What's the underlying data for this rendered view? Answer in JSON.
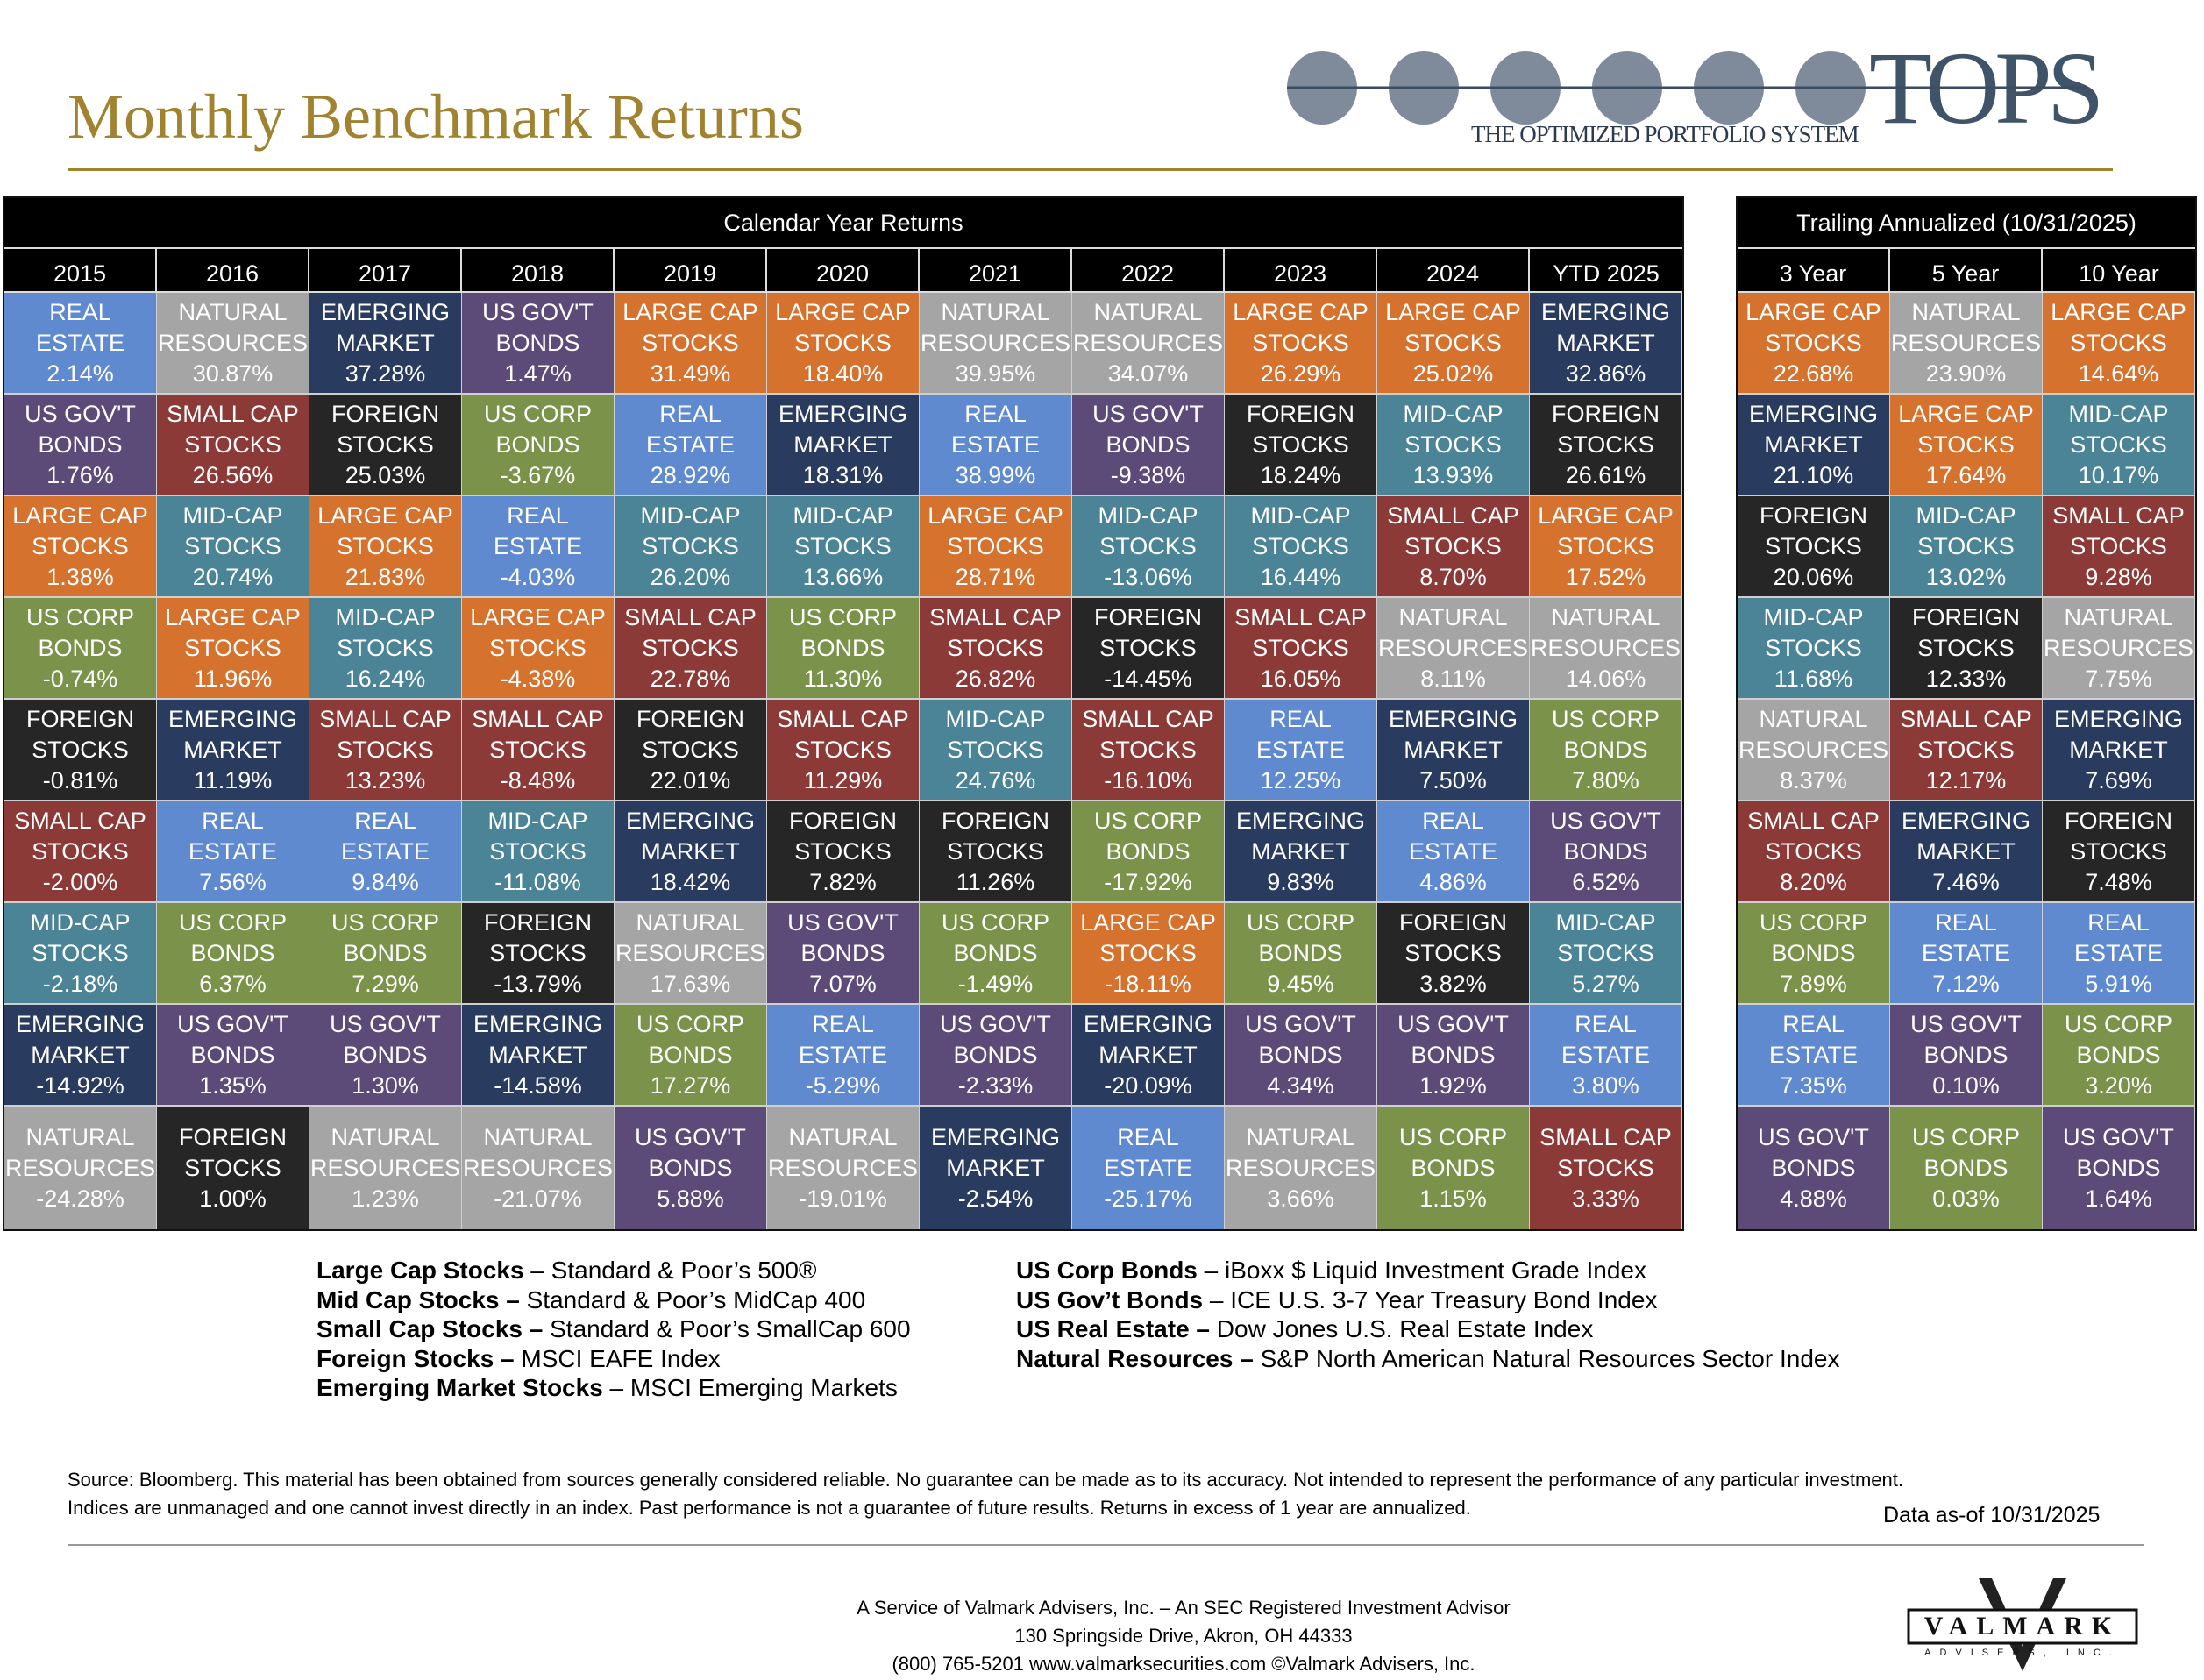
{
  "header": {
    "title": "Monthly Benchmark Returns",
    "logo_text": "TOPS",
    "logo_subtitle": "THE OPTIMIZED PORTFOLIO SYSTEM"
  },
  "colors": {
    "title_gold": "#a0822f"
  },
  "assets": {
    "RE": {
      "line1": "REAL",
      "line2": "ESTATE",
      "color": "#5f8ad0"
    },
    "NR": {
      "line1": "NATURAL",
      "line2": "RESOURCES",
      "color": "#a5a5a5"
    },
    "EM": {
      "line1": "EMERGING",
      "line2": "MARKET",
      "color": "#293b5f"
    },
    "GV": {
      "line1": "US GOV'T",
      "line2": "BONDS",
      "color": "#5c4a78"
    },
    "LC": {
      "line1": "LARGE CAP",
      "line2": "STOCKS",
      "color": "#d4722e"
    },
    "SC": {
      "line1": "SMALL CAP",
      "line2": "STOCKS",
      "color": "#8c3a38"
    },
    "FS": {
      "line1": "FOREIGN",
      "line2": "STOCKS",
      "color": "#262626"
    },
    "CB": {
      "line1": "US CORP",
      "line2": "BONDS",
      "color": "#7a9249"
    },
    "MC": {
      "line1": "MID-CAP",
      "line2": "STOCKS",
      "color": "#4a8496"
    }
  },
  "calendar": {
    "title": "Calendar Year Returns",
    "columns": [
      {
        "label": "2015",
        "cells": [
          [
            "RE",
            "2.14%"
          ],
          [
            "GV",
            "1.76%"
          ],
          [
            "LC",
            "1.38%"
          ],
          [
            "CB",
            "-0.74%"
          ],
          [
            "FS",
            "-0.81%"
          ],
          [
            "SC",
            "-2.00%"
          ],
          [
            "MC",
            "-2.18%"
          ],
          [
            "EM",
            "-14.92%"
          ],
          [
            "NR",
            "-24.28%"
          ]
        ]
      },
      {
        "label": "2016",
        "cells": [
          [
            "NR",
            "30.87%"
          ],
          [
            "SC",
            "26.56%"
          ],
          [
            "MC",
            "20.74%"
          ],
          [
            "LC",
            "11.96%"
          ],
          [
            "EM",
            "11.19%"
          ],
          [
            "RE",
            "7.56%"
          ],
          [
            "CB",
            "6.37%"
          ],
          [
            "GV",
            "1.35%"
          ],
          [
            "FS",
            "1.00%"
          ]
        ]
      },
      {
        "label": "2017",
        "cells": [
          [
            "EM",
            "37.28%"
          ],
          [
            "FS",
            "25.03%"
          ],
          [
            "LC",
            "21.83%"
          ],
          [
            "MC",
            "16.24%"
          ],
          [
            "SC",
            "13.23%"
          ],
          [
            "RE",
            "9.84%"
          ],
          [
            "CB",
            "7.29%"
          ],
          [
            "GV",
            "1.30%"
          ],
          [
            "NR",
            "1.23%"
          ]
        ]
      },
      {
        "label": "2018",
        "cells": [
          [
            "GV",
            "1.47%"
          ],
          [
            "CB",
            "-3.67%"
          ],
          [
            "RE",
            "-4.03%"
          ],
          [
            "LC",
            "-4.38%"
          ],
          [
            "SC",
            "-8.48%"
          ],
          [
            "MC",
            "-11.08%"
          ],
          [
            "FS",
            "-13.79%"
          ],
          [
            "EM",
            "-14.58%"
          ],
          [
            "NR",
            "-21.07%"
          ]
        ]
      },
      {
        "label": "2019",
        "cells": [
          [
            "LC",
            "31.49%"
          ],
          [
            "RE",
            "28.92%"
          ],
          [
            "MC",
            "26.20%"
          ],
          [
            "SC",
            "22.78%"
          ],
          [
            "FS",
            "22.01%"
          ],
          [
            "EM",
            "18.42%"
          ],
          [
            "NR",
            "17.63%"
          ],
          [
            "CB",
            "17.27%"
          ],
          [
            "GV",
            "5.88%"
          ]
        ]
      },
      {
        "label": "2020",
        "cells": [
          [
            "LC",
            "18.40%"
          ],
          [
            "EM",
            "18.31%"
          ],
          [
            "MC",
            "13.66%"
          ],
          [
            "CB",
            "11.30%"
          ],
          [
            "SC",
            "11.29%"
          ],
          [
            "FS",
            "7.82%"
          ],
          [
            "GV",
            "7.07%"
          ],
          [
            "RE",
            "-5.29%"
          ],
          [
            "NR",
            "-19.01%"
          ]
        ]
      },
      {
        "label": "2021",
        "cells": [
          [
            "NR",
            "39.95%"
          ],
          [
            "RE",
            "38.99%"
          ],
          [
            "LC",
            "28.71%"
          ],
          [
            "SC",
            "26.82%"
          ],
          [
            "MC",
            "24.76%"
          ],
          [
            "FS",
            "11.26%"
          ],
          [
            "CB",
            "-1.49%"
          ],
          [
            "GV",
            "-2.33%"
          ],
          [
            "EM",
            "-2.54%"
          ]
        ]
      },
      {
        "label": "2022",
        "cells": [
          [
            "NR",
            "34.07%"
          ],
          [
            "GV",
            "-9.38%"
          ],
          [
            "MC",
            "-13.06%"
          ],
          [
            "FS",
            "-14.45%"
          ],
          [
            "SC",
            "-16.10%"
          ],
          [
            "CB",
            "-17.92%"
          ],
          [
            "LC",
            "-18.11%"
          ],
          [
            "EM",
            "-20.09%"
          ],
          [
            "RE",
            "-25.17%"
          ]
        ]
      },
      {
        "label": "2023",
        "cells": [
          [
            "LC",
            "26.29%"
          ],
          [
            "FS",
            "18.24%"
          ],
          [
            "MC",
            "16.44%"
          ],
          [
            "SC",
            "16.05%"
          ],
          [
            "RE",
            "12.25%"
          ],
          [
            "EM",
            "9.83%"
          ],
          [
            "CB",
            "9.45%"
          ],
          [
            "GV",
            "4.34%"
          ],
          [
            "NR",
            "3.66%"
          ]
        ]
      },
      {
        "label": "2024",
        "cells": [
          [
            "LC",
            "25.02%"
          ],
          [
            "MC",
            "13.93%"
          ],
          [
            "SC",
            "8.70%"
          ],
          [
            "NR",
            "8.11%"
          ],
          [
            "EM",
            "7.50%"
          ],
          [
            "RE",
            "4.86%"
          ],
          [
            "FS",
            "3.82%"
          ],
          [
            "GV",
            "1.92%"
          ],
          [
            "CB",
            "1.15%"
          ]
        ]
      },
      {
        "label": "YTD 2025",
        "cells": [
          [
            "EM",
            "32.86%"
          ],
          [
            "FS",
            "26.61%"
          ],
          [
            "LC",
            "17.52%"
          ],
          [
            "NR",
            "14.06%"
          ],
          [
            "CB",
            "7.80%"
          ],
          [
            "GV",
            "6.52%"
          ],
          [
            "MC",
            "5.27%"
          ],
          [
            "RE",
            "3.80%"
          ],
          [
            "SC",
            "3.33%"
          ]
        ]
      }
    ]
  },
  "trailing": {
    "title": "Trailing Annualized (10/31/2025)",
    "columns": [
      {
        "label": "3 Year",
        "cells": [
          [
            "LC",
            "22.68%"
          ],
          [
            "EM",
            "21.10%"
          ],
          [
            "FS",
            "20.06%"
          ],
          [
            "MC",
            "11.68%"
          ],
          [
            "NR",
            "8.37%"
          ],
          [
            "SC",
            "8.20%"
          ],
          [
            "CB",
            "7.89%"
          ],
          [
            "RE",
            "7.35%"
          ],
          [
            "GV",
            "4.88%"
          ]
        ]
      },
      {
        "label": "5 Year",
        "cells": [
          [
            "NR",
            "23.90%"
          ],
          [
            "LC",
            "17.64%"
          ],
          [
            "MC",
            "13.02%"
          ],
          [
            "FS",
            "12.33%"
          ],
          [
            "SC",
            "12.17%"
          ],
          [
            "EM",
            "7.46%"
          ],
          [
            "RE",
            "7.12%"
          ],
          [
            "GV",
            "0.10%"
          ],
          [
            "CB",
            "0.03%"
          ]
        ]
      },
      {
        "label": "10 Year",
        "cells": [
          [
            "LC",
            "14.64%"
          ],
          [
            "MC",
            "10.17%"
          ],
          [
            "SC",
            "9.28%"
          ],
          [
            "NR",
            "7.75%"
          ],
          [
            "EM",
            "7.69%"
          ],
          [
            "FS",
            "7.48%"
          ],
          [
            "RE",
            "5.91%"
          ],
          [
            "CB",
            "3.20%"
          ],
          [
            "GV",
            "1.64%"
          ]
        ]
      }
    ]
  },
  "legend": {
    "left": [
      {
        "name": "Large Cap Stocks",
        "desc": " – Standard & Poor’s 500®"
      },
      {
        "name": "Mid Cap Stocks –",
        "desc": " Standard & Poor’s MidCap 400"
      },
      {
        "name": "Small Cap Stocks –",
        "desc": " Standard & Poor’s SmallCap 600"
      },
      {
        "name": "Foreign Stocks –",
        "desc": " MSCI EAFE Index"
      },
      {
        "name": "Emerging Market Stocks",
        "desc": " – MSCI Emerging Markets"
      }
    ],
    "right": [
      {
        "name": "US Corp Bonds",
        "desc": " – iBoxx $ Liquid Investment Grade Index"
      },
      {
        "name": "US Gov’t Bonds",
        "desc": " – ICE U.S. 3-7 Year Treasury Bond Index"
      },
      {
        "name": "US Real Estate –",
        "desc": " Dow Jones U.S. Real Estate Index"
      },
      {
        "name": "Natural Resources –",
        "desc": " S&P North American Natural Resources Sector Index"
      }
    ]
  },
  "disclaimer": {
    "line1": "Source: Bloomberg. This material has been obtained from sources generally considered reliable. No guarantee can be made as to its accuracy. Not intended to represent the performance of any particular investment.",
    "line2": "Indices are unmanaged and one cannot invest directly in an index. Past performance is not a guarantee of future results.  Returns in excess of 1 year are annualized.",
    "as_of": "Data as-of 10/31/2025"
  },
  "footer": {
    "line1": "A Service of Valmark Advisers, Inc. – An SEC Registered Investment Advisor",
    "line2": "130 Springside Drive, Akron, OH  44333",
    "line3": "(800) 765-5201  www.valmarksecurities.com  ©Valmark Advisers, Inc.",
    "logo_text": "VALMARK",
    "logo_sub": "ADVISERS, INC."
  }
}
